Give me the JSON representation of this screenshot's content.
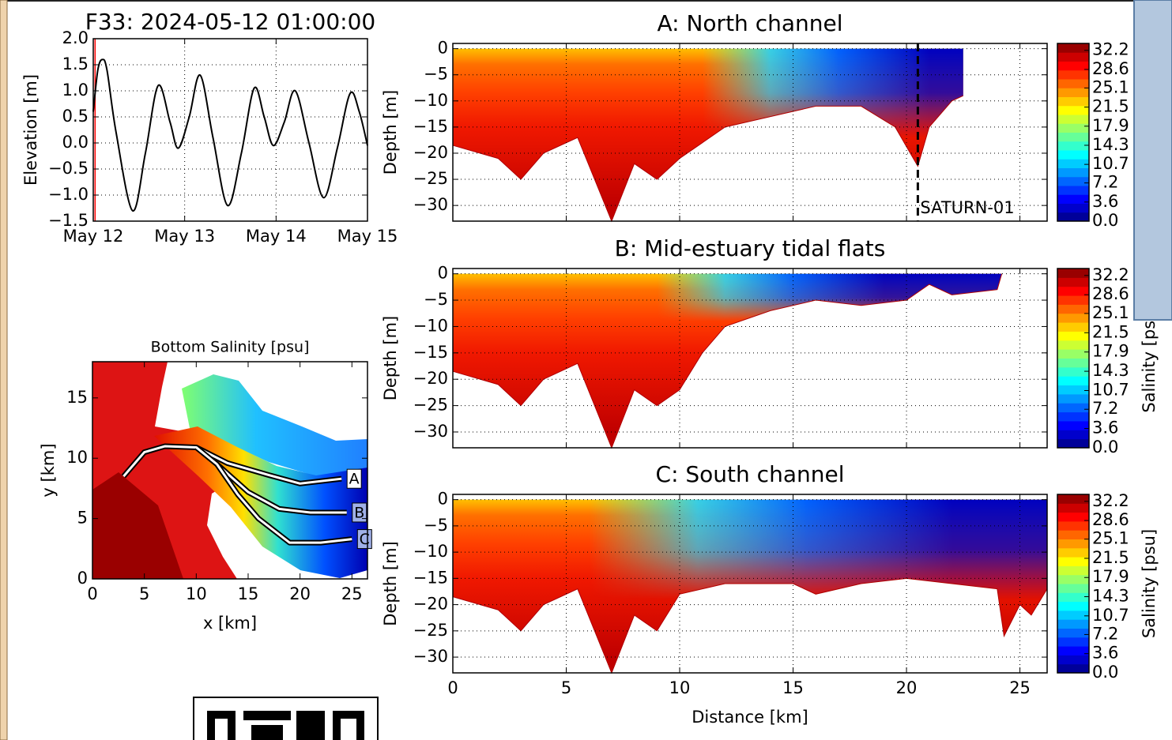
{
  "chart_data": [
    {
      "type": "line",
      "title": "F33: 2024-05-12 01:00:00",
      "ylabel": "Elevation [m]",
      "x": [
        0,
        0.05,
        0.1,
        0.15,
        0.25,
        0.43,
        0.57,
        0.71,
        0.84,
        0.93,
        1.05,
        1.17,
        1.31,
        1.47,
        1.62,
        1.76,
        1.87,
        1.97,
        2.09,
        2.21,
        2.36,
        2.52,
        2.67,
        2.81,
        2.91,
        3.0
      ],
      "values": [
        0.6,
        1.4,
        1.6,
        1.4,
        0.2,
        -1.3,
        -0.2,
        1.1,
        0.4,
        -0.1,
        0.5,
        1.3,
        0.1,
        -1.2,
        -0.2,
        1.05,
        0.5,
        -0.05,
        0.4,
        1.0,
        0.0,
        -1.05,
        -0.1,
        0.95,
        0.6,
        -0.05
      ],
      "color": "#000000",
      "now": 0.02,
      "now_color": "#ff0000",
      "xlim": [
        0,
        3
      ],
      "ylim": [
        -1.5,
        2.0
      ],
      "xticks": [
        {
          "value": 0,
          "label": "May 12"
        },
        {
          "value": 1,
          "label": "May 13"
        },
        {
          "value": 2,
          "label": "May 14"
        },
        {
          "value": 3,
          "label": "May 15"
        }
      ],
      "yticks": [
        {
          "value": -1.5,
          "label": "−1.5"
        },
        {
          "value": -1.0,
          "label": "−1.0"
        },
        {
          "value": -0.5,
          "label": "−0.5"
        },
        {
          "value": 0,
          "label": "0.0"
        },
        0.5,
        {
          "value": 1,
          "label": "1.0"
        },
        1.5,
        {
          "value": 2,
          "label": "2.0"
        }
      ],
      "grid": true
    },
    {
      "type": "map",
      "title": "Bottom Salinity [psu]",
      "xlabel": "x [km]",
      "ylabel": "y [km]",
      "xlim": [
        0,
        26.5
      ],
      "ylim": [
        0,
        18
      ],
      "xticks": [
        0,
        5,
        10,
        15,
        20,
        25
      ],
      "yticks": [
        0,
        5,
        10,
        15
      ],
      "grid": false,
      "transects": [
        {
          "name": "A",
          "x": [
            3,
            5,
            7,
            10,
            13,
            17,
            20,
            24
          ],
          "y": [
            8.5,
            10.5,
            11,
            10.9,
            9.6,
            8.6,
            7.9,
            8.3
          ]
        },
        {
          "name": "B",
          "x": [
            10,
            12,
            15,
            18,
            21,
            24.5
          ],
          "y": [
            10.9,
            9.5,
            7.2,
            5.8,
            5.5,
            5.5
          ]
        },
        {
          "name": "C",
          "x": [
            12,
            14,
            16,
            19,
            22,
            25
          ],
          "y": [
            9.5,
            7,
            5,
            3,
            3,
            3.3
          ]
        }
      ]
    },
    {
      "type": "section",
      "title": "A: North channel",
      "ylabel": "Depth [m]",
      "xlim": [
        0,
        26.2
      ],
      "ylim": [
        -33,
        1
      ],
      "xticks": [
        0,
        5,
        10,
        15,
        20,
        25
      ],
      "xticklabels": false,
      "yticks": [
        {
          "value": -30,
          "label": "−30"
        },
        {
          "value": -25,
          "label": "−25"
        },
        {
          "value": -20,
          "label": "−20"
        },
        {
          "value": -15,
          "label": "−15"
        },
        {
          "value": -10,
          "label": "−10"
        },
        {
          "value": -5,
          "label": "−5"
        },
        0
      ],
      "grid": true,
      "bottom": {
        "x": [
          0,
          2,
          3,
          4,
          5.5,
          7,
          8,
          9,
          10,
          12,
          14,
          16,
          18,
          19.5,
          20.5,
          21,
          22,
          22.5
        ],
        "y": [
          -18.5,
          -21,
          -25,
          -20,
          -17,
          -33,
          -22,
          -25,
          -21,
          -15,
          -13,
          -11,
          -11,
          -15,
          -22.5,
          -15,
          -10,
          -9
        ]
      },
      "colorbar": {
        "lim": [
          0,
          33.5
        ],
        "ticks": [
          {
            "value": 0,
            "label": "0.0"
          },
          3.6,
          7.2,
          10.7,
          14.3,
          17.9,
          21.5,
          25.1,
          28.6,
          32.2
        ]
      },
      "annotation": {
        "text": "SATURN-01",
        "x": 20.5
      }
    },
    {
      "type": "section",
      "title": "B: Mid-estuary tidal flats",
      "ylabel": "Depth [m]",
      "xlim": [
        0,
        26.2
      ],
      "ylim": [
        -33,
        1
      ],
      "xticks": [
        0,
        5,
        10,
        15,
        20,
        25
      ],
      "xticklabels": false,
      "yticks": [
        {
          "value": -30,
          "label": "−30"
        },
        {
          "value": -25,
          "label": "−25"
        },
        {
          "value": -20,
          "label": "−20"
        },
        {
          "value": -15,
          "label": "−15"
        },
        {
          "value": -10,
          "label": "−10"
        },
        {
          "value": -5,
          "label": "−5"
        },
        0
      ],
      "grid": true,
      "bottom": {
        "x": [
          0,
          2,
          3,
          4,
          5.5,
          7,
          8,
          9,
          10,
          11,
          12,
          14,
          16,
          18,
          20,
          21,
          22,
          24,
          24.2
        ],
        "y": [
          -18.5,
          -21,
          -25,
          -20,
          -17,
          -33,
          -22,
          -25,
          -22,
          -15,
          -10,
          -7,
          -5,
          -6,
          -5,
          -2,
          -4,
          -3,
          0
        ]
      },
      "colorbar": {
        "lim": [
          0,
          33.5
        ],
        "ticks": [
          {
            "value": 0,
            "label": "0.0"
          },
          3.6,
          7.2,
          10.7,
          14.3,
          17.9,
          21.5,
          25.1,
          28.6,
          32.2
        ],
        "label": "Salinity [psu]"
      }
    },
    {
      "type": "section",
      "title": "C: South channel",
      "ylabel": "Depth [m]",
      "xlabel": "Distance [km]",
      "xlim": [
        0,
        26.2
      ],
      "ylim": [
        -33,
        1
      ],
      "xticks": [
        0,
        5,
        10,
        15,
        20,
        25
      ],
      "xticklabels": true,
      "yticks": [
        {
          "value": -30,
          "label": "−30"
        },
        {
          "value": -25,
          "label": "−25"
        },
        {
          "value": -20,
          "label": "−20"
        },
        {
          "value": -15,
          "label": "−15"
        },
        {
          "value": -10,
          "label": "−10"
        },
        {
          "value": -5,
          "label": "−5"
        },
        0
      ],
      "grid": true,
      "bottom": {
        "x": [
          0,
          2,
          3,
          4,
          5.5,
          7,
          8,
          9,
          10,
          12,
          15,
          16,
          18,
          20,
          22,
          24,
          24.3,
          25,
          25.5,
          26.2
        ],
        "y": [
          -18.5,
          -21,
          -25,
          -20,
          -17,
          -33,
          -22,
          -25,
          -18,
          -16,
          -16,
          -18,
          -16,
          -15,
          -16,
          -17,
          -26,
          -20,
          -22,
          -17
        ]
      },
      "colorbar": {
        "lim": [
          0,
          33.5
        ],
        "ticks": [
          {
            "value": 0,
            "label": "0.0"
          },
          3.6,
          7.2,
          10.7,
          14.3,
          17.9,
          21.5,
          25.1,
          28.6,
          32.2
        ],
        "label": "Salinity [psu]"
      }
    }
  ]
}
